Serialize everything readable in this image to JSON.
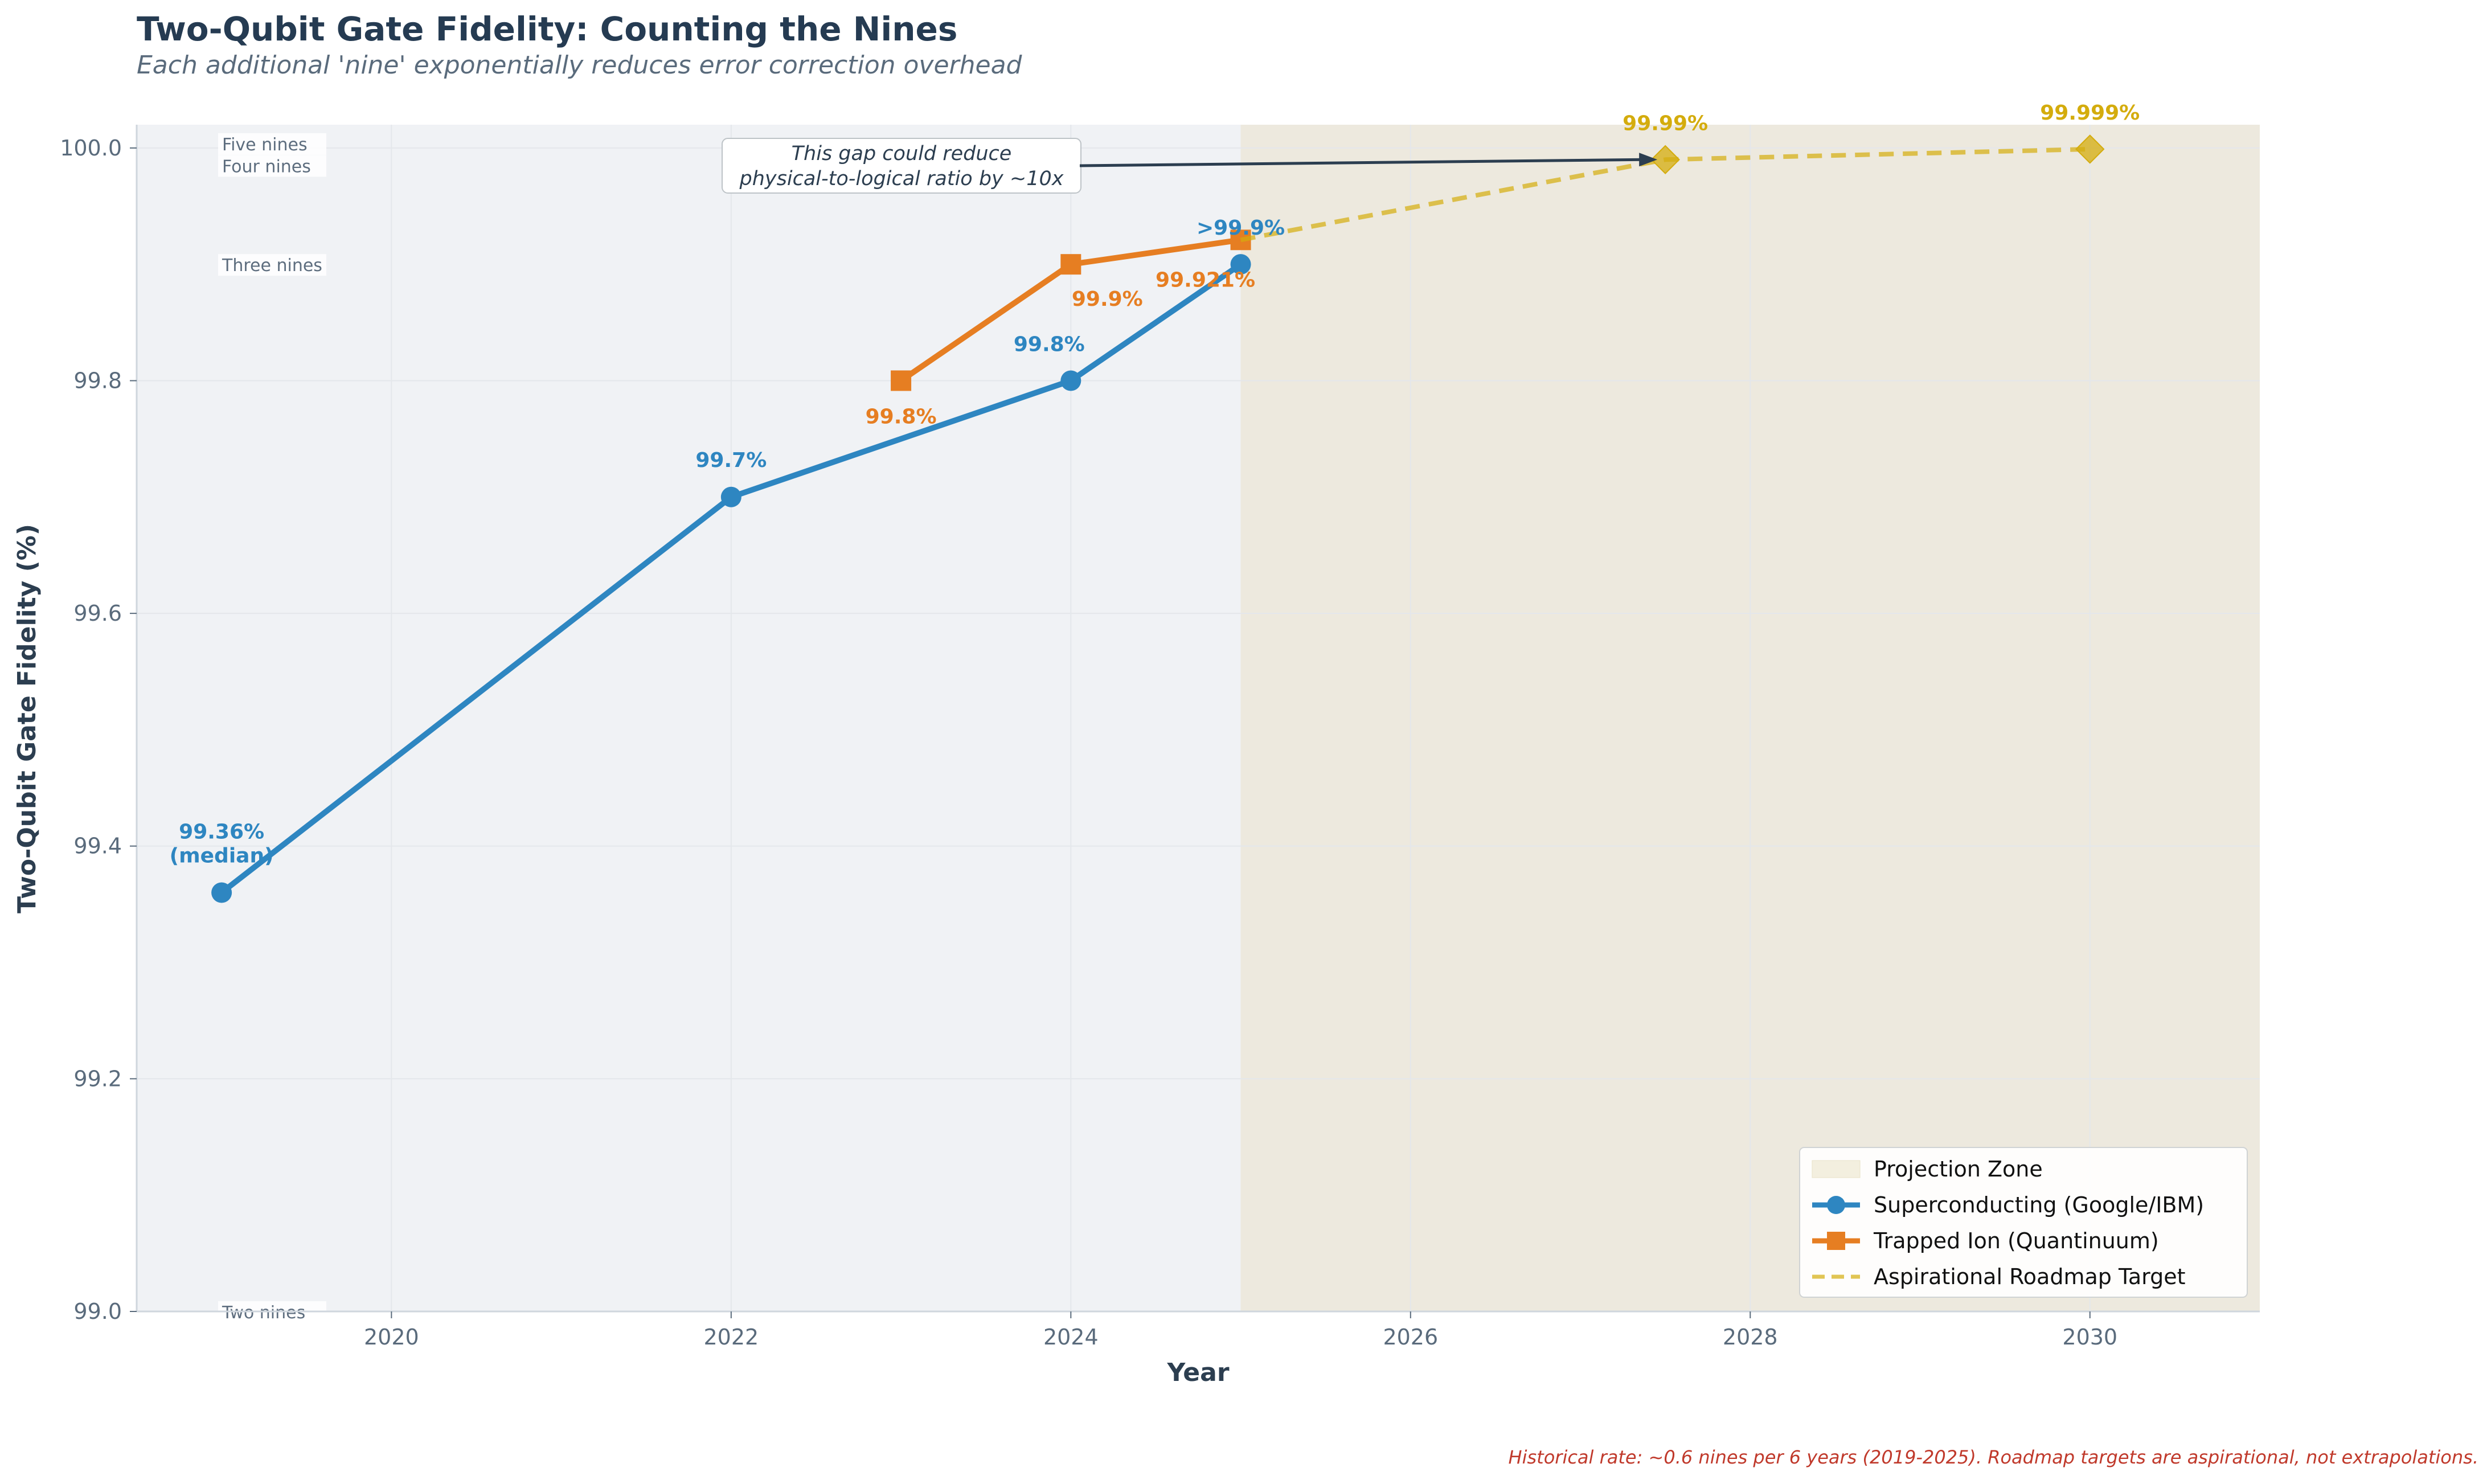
{
  "chart_data": {
    "type": "line",
    "title": "Two-Qubit Gate Fidelity: Counting the Nines",
    "subtitle": "Each additional 'nine' exponentially reduces error correction overhead",
    "xlabel": "Year",
    "ylabel": "Two-Qubit Gate Fidelity (%)",
    "xlim": [
      2018.5,
      2031
    ],
    "ylim": [
      99.0,
      100.02
    ],
    "xticks": [
      "2020",
      "2022",
      "2024",
      "2026",
      "2028",
      "2030"
    ],
    "xtick_values": [
      2020,
      2022,
      2024,
      2026,
      2028,
      2030
    ],
    "yticks": [
      "99.0",
      "99.2",
      "99.4",
      "99.6",
      "99.8",
      "100.0"
    ],
    "ytick_values": [
      99.0,
      99.2,
      99.4,
      99.6,
      99.8,
      100.0
    ],
    "projection_zone": {
      "from": 2025,
      "to": 2031,
      "label": "Projection Zone"
    },
    "nines_lines": [
      {
        "label": "Two nines",
        "value": 99.0
      },
      {
        "label": "Three nines",
        "value": 99.9
      },
      {
        "label": "Four nines",
        "value": 99.99
      },
      {
        "label": "Five nines",
        "value": 99.999
      }
    ],
    "series": [
      {
        "name": "Superconducting (Google/IBM)",
        "color": "#2e86c1",
        "marker": "circle",
        "style": "solid",
        "x": [
          2019,
          2022,
          2024,
          2025
        ],
        "y": [
          99.36,
          99.7,
          99.8,
          99.9
        ],
        "labels": [
          "99.36%\n(median)",
          "99.7%",
          "99.8%",
          ">99.9%"
        ]
      },
      {
        "name": "Trapped Ion (Quantinuum)",
        "color": "#e67e22",
        "marker": "square",
        "style": "solid",
        "x": [
          2023,
          2024,
          2025
        ],
        "y": [
          99.8,
          99.9,
          99.921
        ],
        "labels": [
          "99.8%",
          "99.9%",
          "99.921%"
        ]
      },
      {
        "name": "Aspirational Roadmap Target",
        "color": "#d4ac0d",
        "marker": "diamond",
        "style": "dashed",
        "x": [
          2025,
          2027.5,
          2030
        ],
        "y": [
          99.921,
          99.99,
          99.999
        ],
        "labels": [
          "",
          "99.99%",
          "99.999%"
        ]
      }
    ],
    "annotation": {
      "text": [
        "This gap could reduce",
        "physical-to-logical ratio by ~10x"
      ],
      "arrow_to_x": 2027.5,
      "arrow_to_y": 99.99
    },
    "legend": {
      "position": "lower-right",
      "items": [
        "Projection Zone",
        "Superconducting (Google/IBM)",
        "Trapped Ion (Quantinuum)",
        "Aspirational Roadmap Target"
      ]
    },
    "footnote": "Historical rate: ~0.6 nines per 6 years (2019-2025). Roadmap targets are aspirational, not extrapolations."
  }
}
